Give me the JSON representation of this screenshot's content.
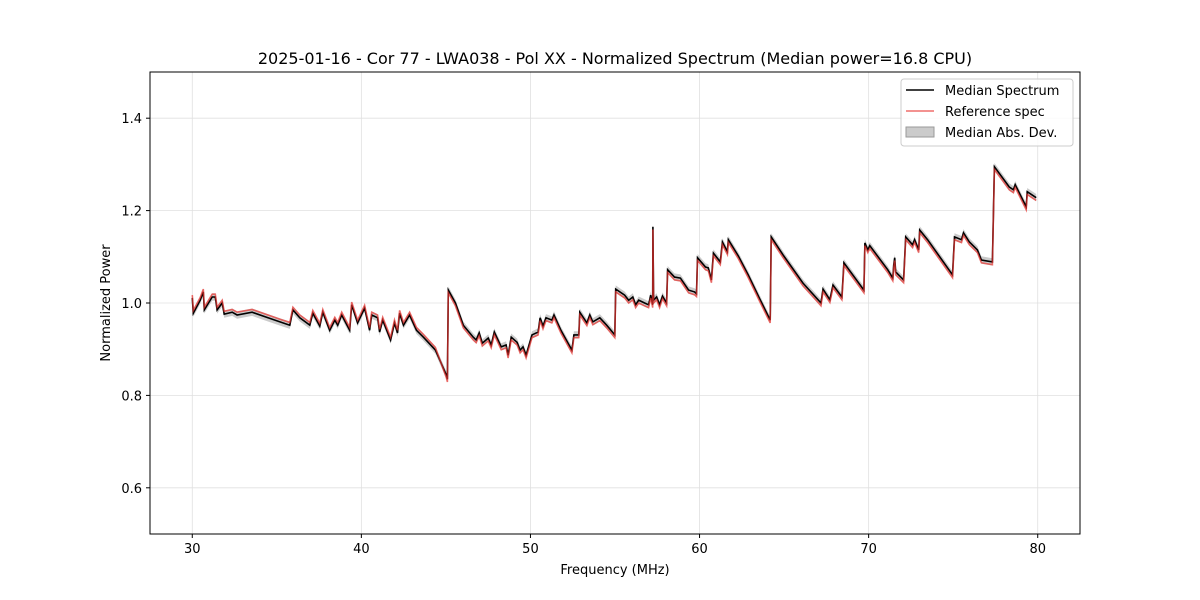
{
  "chart_data": {
    "type": "line",
    "title": "2025-01-16 - Cor 77 - LWA038 - Pol XX - Normalized Spectrum (Median power=16.8 CPU)",
    "xlabel": "Frequency (MHz)",
    "ylabel": "Normalized Power",
    "xlim": [
      27.5,
      82.5
    ],
    "ylim": [
      0.5,
      1.5
    ],
    "xticks": [
      30,
      40,
      50,
      60,
      70,
      80
    ],
    "xtick_labels": [
      "30",
      "40",
      "50",
      "60",
      "70",
      "80"
    ],
    "yticks": [
      0.6,
      0.8,
      1.0,
      1.2,
      1.4
    ],
    "ytick_labels": [
      "0.6",
      "0.8",
      "1.0",
      "1.2",
      "1.4"
    ],
    "grid": true,
    "legend": {
      "placement": "top-right",
      "entries": [
        "Median Spectrum",
        "Reference spec",
        "Median Abs. Dev."
      ]
    },
    "colors": {
      "median": "#000000",
      "reference": "#e8322e",
      "mad": "#a0a0a0"
    },
    "mad_approx": 0.008,
    "reference_offset_approx": -0.006,
    "series": [
      {
        "name": "Median Spectrum",
        "x": [
          30.0,
          30.06,
          30.47,
          30.65,
          30.71,
          31.18,
          31.36,
          31.47,
          31.77,
          31.89,
          32.36,
          32.65,
          33.54,
          34.48,
          35.19,
          35.77,
          35.95,
          36.36,
          36.95,
          37.13,
          37.54,
          37.72,
          38.13,
          38.43,
          38.6,
          38.84,
          39.31,
          39.43,
          39.78,
          40.19,
          40.49,
          40.61,
          40.96,
          41.08,
          41.26,
          41.73,
          41.96,
          42.14,
          42.26,
          42.49,
          42.85,
          43.26,
          43.67,
          44.38,
          45.03,
          45.09,
          45.14,
          45.56,
          46.03,
          46.62,
          46.79,
          46.97,
          47.15,
          47.5,
          47.68,
          47.86,
          48.27,
          48.56,
          48.68,
          48.86,
          49.21,
          49.39,
          49.56,
          49.74,
          50.09,
          50.45,
          50.57,
          50.74,
          50.92,
          51.27,
          51.39,
          51.8,
          52.45,
          52.57,
          52.86,
          52.92,
          53.34,
          53.51,
          53.69,
          54.1,
          54.51,
          54.99,
          55.04,
          55.57,
          55.81,
          56.05,
          56.22,
          56.4,
          56.75,
          56.99,
          57.11,
          57.23,
          57.24,
          57.28,
          57.46,
          57.64,
          57.81,
          58.05,
          58.11,
          58.52,
          58.87,
          59.35,
          59.7,
          59.82,
          59.88,
          60.35,
          60.52,
          60.7,
          60.82,
          61.23,
          61.35,
          61.65,
          61.7,
          62.29,
          62.88,
          63.59,
          64.18,
          64.24,
          64.94,
          66.12,
          67.01,
          67.18,
          67.3,
          67.71,
          67.89,
          68.42,
          68.54,
          69.72,
          69.78,
          69.95,
          70.07,
          71.13,
          71.43,
          71.48,
          71.54,
          71.6,
          72.07,
          72.19,
          72.6,
          72.72,
          72.96,
          73.02,
          73.49,
          74.96,
          75.08,
          75.49,
          75.61,
          75.96,
          76.43,
          76.67,
          77.32,
          77.44,
          78.32,
          78.56,
          78.67,
          79.32,
          79.38,
          79.91
        ],
        "y": [
          1.011,
          0.978,
          1.006,
          1.024,
          0.985,
          1.013,
          1.013,
          0.985,
          1.0,
          0.976,
          0.98,
          0.974,
          0.98,
          0.968,
          0.959,
          0.952,
          0.985,
          0.968,
          0.952,
          0.978,
          0.95,
          0.98,
          0.941,
          0.963,
          0.952,
          0.974,
          0.941,
          0.996,
          0.957,
          0.989,
          0.941,
          0.974,
          0.968,
          0.937,
          0.963,
          0.92,
          0.957,
          0.935,
          0.978,
          0.952,
          0.974,
          0.941,
          0.926,
          0.898,
          0.844,
          0.835,
          1.028,
          1.0,
          0.952,
          0.926,
          0.92,
          0.935,
          0.913,
          0.924,
          0.909,
          0.937,
          0.905,
          0.909,
          0.887,
          0.926,
          0.915,
          0.898,
          0.905,
          0.887,
          0.931,
          0.937,
          0.968,
          0.95,
          0.968,
          0.963,
          0.974,
          0.941,
          0.898,
          0.931,
          0.931,
          0.98,
          0.957,
          0.974,
          0.959,
          0.968,
          0.952,
          0.931,
          1.03,
          1.017,
          1.006,
          1.013,
          0.996,
          1.006,
          1.0,
          0.996,
          1.017,
          0.996,
          1.165,
          1.006,
          1.013,
          0.996,
          1.015,
          1.0,
          1.072,
          1.056,
          1.054,
          1.028,
          1.024,
          1.02,
          1.098,
          1.078,
          1.076,
          1.05,
          1.108,
          1.089,
          1.132,
          1.111,
          1.137,
          1.102,
          1.061,
          1.007,
          0.963,
          1.143,
          1.104,
          1.043,
          1.007,
          1.0,
          1.03,
          1.007,
          1.039,
          1.013,
          1.087,
          1.028,
          1.13,
          1.115,
          1.124,
          1.072,
          1.054,
          1.082,
          1.098,
          1.067,
          1.05,
          1.143,
          1.126,
          1.137,
          1.115,
          1.158,
          1.137,
          1.061,
          1.143,
          1.137,
          1.152,
          1.132,
          1.115,
          1.093,
          1.089,
          1.295,
          1.251,
          1.245,
          1.256,
          1.208,
          1.241,
          1.228
        ]
      }
    ]
  }
}
